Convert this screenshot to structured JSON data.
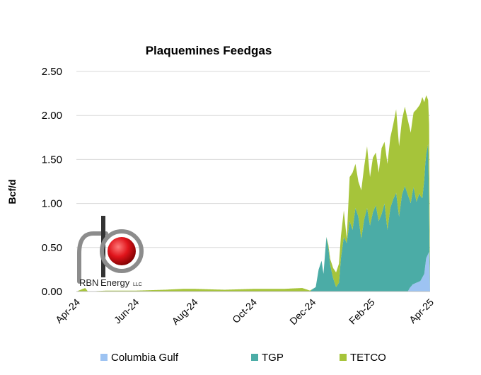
{
  "chart_data": {
    "type": "area",
    "title": "Plaquemines Feedgas",
    "ylabel": "Bcf/d",
    "xlabel": "",
    "ylim": [
      0,
      2.5
    ],
    "yticks": [
      "0.00",
      "0.50",
      "1.00",
      "1.50",
      "2.00",
      "2.50"
    ],
    "xticks": [
      "Apr-24",
      "Jun-24",
      "Aug-24",
      "Oct-24",
      "Dec-24",
      "Feb-25",
      "Apr-25"
    ],
    "xrange": [
      "2024-04-01",
      "2025-04-01"
    ],
    "stacked": true,
    "grid": "horizontal",
    "legend_position": "bottom",
    "series": [
      {
        "name": "Columbia Gulf",
        "color": "#9DC3F2",
        "points": [
          [
            "2025-02-20",
            0
          ],
          [
            "2025-03-09",
            0
          ],
          [
            "2025-03-11",
            0.04
          ],
          [
            "2025-03-14",
            0.08
          ],
          [
            "2025-03-18",
            0.1
          ],
          [
            "2025-03-22",
            0.12
          ],
          [
            "2025-03-26",
            0.2
          ],
          [
            "2025-03-28",
            0.38
          ],
          [
            "2025-03-31",
            0.45
          ]
        ]
      },
      {
        "name": "TGP",
        "color": "#4BACA6",
        "points": [
          [
            "2024-11-28",
            0
          ],
          [
            "2024-12-01",
            0.03
          ],
          [
            "2024-12-04",
            0.05
          ],
          [
            "2024-12-07",
            0.25
          ],
          [
            "2024-12-10",
            0.35
          ],
          [
            "2024-12-12",
            0.2
          ],
          [
            "2024-12-15",
            0.62
          ],
          [
            "2024-12-17",
            0.5
          ],
          [
            "2024-12-19",
            0.3
          ],
          [
            "2024-12-22",
            0.15
          ],
          [
            "2024-12-25",
            0.05
          ],
          [
            "2024-12-28",
            0.1
          ],
          [
            "2024-12-30",
            0.38
          ],
          [
            "2025-01-02",
            0.62
          ],
          [
            "2025-01-05",
            0.55
          ],
          [
            "2025-01-08",
            0.8
          ],
          [
            "2025-01-11",
            0.7
          ],
          [
            "2025-01-14",
            0.95
          ],
          [
            "2025-01-17",
            0.85
          ],
          [
            "2025-01-20",
            0.6
          ],
          [
            "2025-01-23",
            0.82
          ],
          [
            "2025-01-26",
            0.95
          ],
          [
            "2025-01-29",
            0.75
          ],
          [
            "2025-02-01",
            0.9
          ],
          [
            "2025-02-04",
            0.98
          ],
          [
            "2025-02-07",
            0.8
          ],
          [
            "2025-02-10",
            0.88
          ],
          [
            "2025-02-13",
            1.0
          ],
          [
            "2025-02-16",
            0.7
          ],
          [
            "2025-02-19",
            0.95
          ],
          [
            "2025-02-22",
            1.05
          ],
          [
            "2025-02-25",
            1.12
          ],
          [
            "2025-02-28",
            0.85
          ],
          [
            "2025-03-03",
            1.1
          ],
          [
            "2025-03-06",
            1.2
          ],
          [
            "2025-03-09",
            1.1
          ],
          [
            "2025-03-12",
            0.95
          ],
          [
            "2025-03-15",
            1.1
          ],
          [
            "2025-03-18",
            0.92
          ],
          [
            "2025-03-21",
            1.0
          ],
          [
            "2025-03-24",
            0.9
          ],
          [
            "2025-03-27",
            1.15
          ],
          [
            "2025-03-30",
            1.25
          ],
          [
            "2025-03-31",
            0.5
          ]
        ]
      },
      {
        "name": "TETCO",
        "color": "#A6C43A",
        "points": [
          [
            "2024-04-01",
            0
          ],
          [
            "2024-04-10",
            0.04
          ],
          [
            "2024-04-13",
            0
          ],
          [
            "2024-05-01",
            0.01
          ],
          [
            "2024-06-01",
            0.01
          ],
          [
            "2024-07-01",
            0.02
          ],
          [
            "2024-07-20",
            0.03
          ],
          [
            "2024-08-01",
            0.03
          ],
          [
            "2024-09-01",
            0.02
          ],
          [
            "2024-10-01",
            0.03
          ],
          [
            "2024-11-01",
            0.03
          ],
          [
            "2024-11-20",
            0.04
          ],
          [
            "2024-12-01",
            0.0
          ],
          [
            "2024-12-15",
            0.0
          ],
          [
            "2024-12-30",
            0.25
          ],
          [
            "2025-01-02",
            0.3
          ],
          [
            "2025-01-05",
            0.05
          ],
          [
            "2025-01-08",
            0.5
          ],
          [
            "2025-01-11",
            0.65
          ],
          [
            "2025-01-14",
            0.5
          ],
          [
            "2025-01-17",
            0.4
          ],
          [
            "2025-01-20",
            0.55
          ],
          [
            "2025-01-23",
            0.6
          ],
          [
            "2025-01-26",
            0.7
          ],
          [
            "2025-01-29",
            0.55
          ],
          [
            "2025-02-01",
            0.62
          ],
          [
            "2025-02-04",
            0.6
          ],
          [
            "2025-02-07",
            0.55
          ],
          [
            "2025-02-10",
            0.75
          ],
          [
            "2025-02-13",
            0.7
          ],
          [
            "2025-02-16",
            0.75
          ],
          [
            "2025-02-19",
            0.8
          ],
          [
            "2025-02-22",
            0.85
          ],
          [
            "2025-02-25",
            0.95
          ],
          [
            "2025-02-28",
            0.8
          ],
          [
            "2025-03-03",
            0.85
          ],
          [
            "2025-03-06",
            0.9
          ],
          [
            "2025-03-09",
            0.85
          ],
          [
            "2025-03-12",
            0.8
          ],
          [
            "2025-03-15",
            0.85
          ],
          [
            "2025-03-18",
            1.05
          ],
          [
            "2025-03-21",
            1.0
          ],
          [
            "2025-03-24",
            1.15
          ],
          [
            "2025-03-27",
            0.75
          ],
          [
            "2025-03-30",
            0.5
          ],
          [
            "2025-03-31",
            0.95
          ]
        ]
      }
    ]
  },
  "logo": {
    "name": "RBN",
    "suffix": "Energy",
    "small": "LLC",
    "colors": {
      "red": "#E0141B",
      "gray": "#8C8C8C",
      "dark": "#333333"
    }
  }
}
